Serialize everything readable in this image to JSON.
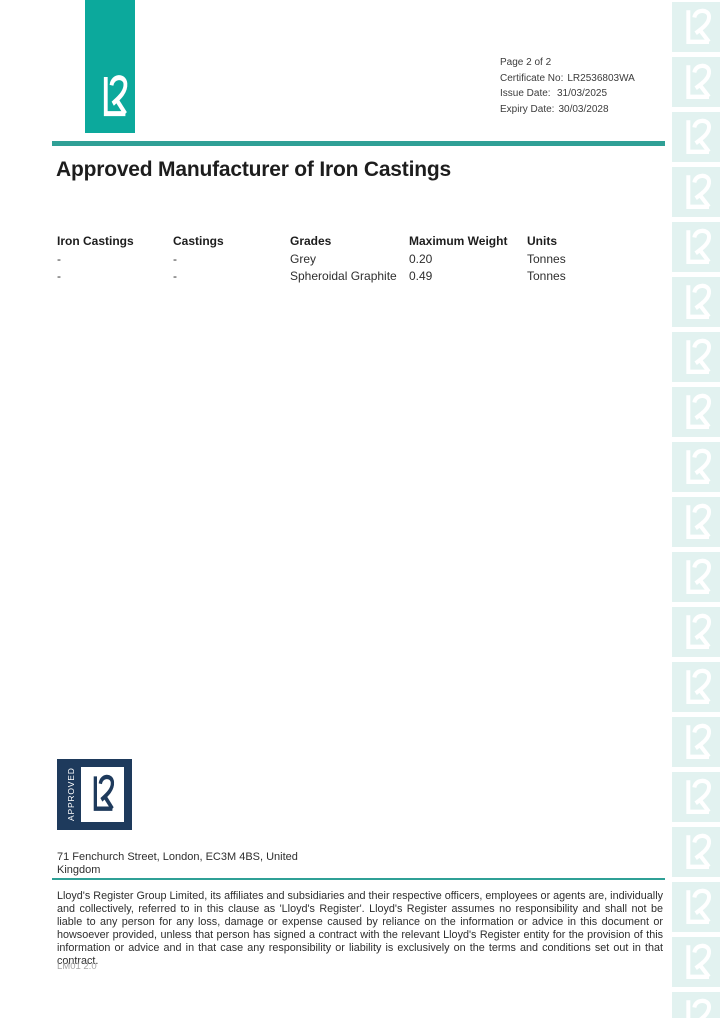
{
  "meta": {
    "page_label": "Page 2 of 2",
    "certificate_label": "Certificate No:",
    "certificate_value": "LR2536803WA",
    "issue_label": "Issue Date:",
    "issue_value": "31/03/2025",
    "expiry_label": "Expiry Date:",
    "expiry_value": "30/03/2028"
  },
  "title": "Approved Manufacturer of Iron Castings",
  "table": {
    "headers": [
      "Iron Castings",
      "Castings",
      "Grades",
      "Maximum Weight",
      "Units"
    ],
    "rows": [
      [
        "-",
        "-",
        "Grey",
        "0.20",
        "Tonnes"
      ],
      [
        "-",
        "-",
        "Spheroidal Graphite",
        "0.49",
        "Tonnes"
      ]
    ]
  },
  "footer": {
    "approved_label": "APPROVED",
    "address": "71 Fenchurch Street, London, EC3M 4BS, United Kingdom",
    "disclaimer": "Lloyd's Register Group Limited, its affiliates and subsidiaries and their respective officers, employees or agents are, individually and collectively, referred to in this clause as 'Lloyd's Register'. Lloyd's Register assumes no responsibility and shall not be liable to any person for any loss, damage or expense caused by reliance on the information or advice in this document or howsoever provided, unless that person has signed a contract with the relevant Lloyd's Register entity for the provision of this information or advice and in that case any responsibility or liability is exclusively on the terms and conditions set out in that contract.",
    "doc_code": "LM01 2.0"
  },
  "icons": {
    "brand_logo": "lr-monogram-icon",
    "approved_badge": "lr-approved-badge-icon",
    "watermark": "lr-logo-watermark-icon"
  },
  "colors": {
    "teal": "#0ca99c",
    "rule_teal": "#2fa096",
    "navy": "#1e3a5c",
    "watermark_bg": "#e2f2f0"
  },
  "watermark": {
    "tile_count": 19
  }
}
